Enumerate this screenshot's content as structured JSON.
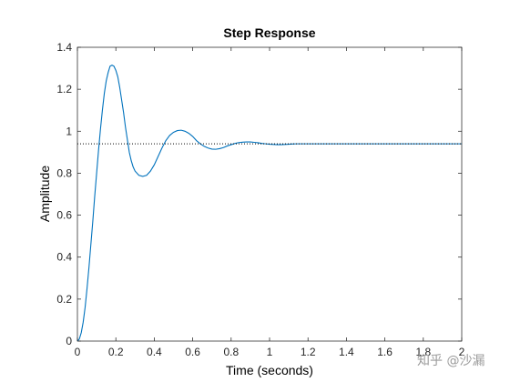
{
  "chart_data": {
    "type": "line",
    "title": "Step Response",
    "xlabel": "Time (seconds)",
    "ylabel": "Amplitude",
    "xlim": [
      0,
      2
    ],
    "ylim": [
      0,
      1.4
    ],
    "x_ticks": [
      "0",
      "0.2",
      "0.4",
      "0.6",
      "0.8",
      "1",
      "1.2",
      "1.4",
      "1.6",
      "1.8",
      "2"
    ],
    "y_ticks": [
      "0",
      "0.2",
      "0.4",
      "0.6",
      "0.8",
      "1",
      "1.2",
      "1.4"
    ],
    "grid": false,
    "box": true,
    "series": [
      {
        "style": "solid",
        "color": "#0072BD",
        "points": [
          [
            0,
            0
          ],
          [
            0.01,
            0.01
          ],
          [
            0.02,
            0.04
          ],
          [
            0.03,
            0.09
          ],
          [
            0.04,
            0.16
          ],
          [
            0.05,
            0.25
          ],
          [
            0.06,
            0.35
          ],
          [
            0.07,
            0.46
          ],
          [
            0.08,
            0.57
          ],
          [
            0.09,
            0.69
          ],
          [
            0.1,
            0.8
          ],
          [
            0.11,
            0.91
          ],
          [
            0.12,
            1.01
          ],
          [
            0.13,
            1.1
          ],
          [
            0.14,
            1.18
          ],
          [
            0.15,
            1.24
          ],
          [
            0.16,
            1.28
          ],
          [
            0.17,
            1.31
          ],
          [
            0.18,
            1.315
          ],
          [
            0.19,
            1.31
          ],
          [
            0.2,
            1.29
          ],
          [
            0.21,
            1.26
          ],
          [
            0.22,
            1.21
          ],
          [
            0.23,
            1.15
          ],
          [
            0.24,
            1.09
          ],
          [
            0.25,
            1.02
          ],
          [
            0.26,
            0.96
          ],
          [
            0.27,
            0.9
          ],
          [
            0.28,
            0.86
          ],
          [
            0.29,
            0.83
          ],
          [
            0.3,
            0.81
          ],
          [
            0.32,
            0.79
          ],
          [
            0.34,
            0.785
          ],
          [
            0.36,
            0.79
          ],
          [
            0.38,
            0.81
          ],
          [
            0.4,
            0.84
          ],
          [
            0.42,
            0.88
          ],
          [
            0.44,
            0.92
          ],
          [
            0.46,
            0.955
          ],
          [
            0.48,
            0.98
          ],
          [
            0.5,
            0.995
          ],
          [
            0.52,
            1.003
          ],
          [
            0.54,
            1.005
          ],
          [
            0.56,
            1.0
          ],
          [
            0.58,
            0.99
          ],
          [
            0.6,
            0.975
          ],
          [
            0.62,
            0.955
          ],
          [
            0.64,
            0.94
          ],
          [
            0.66,
            0.928
          ],
          [
            0.68,
            0.92
          ],
          [
            0.7,
            0.915
          ],
          [
            0.72,
            0.914
          ],
          [
            0.74,
            0.917
          ],
          [
            0.76,
            0.922
          ],
          [
            0.78,
            0.93
          ],
          [
            0.8,
            0.936
          ],
          [
            0.82,
            0.942
          ],
          [
            0.84,
            0.946
          ],
          [
            0.86,
            0.948
          ],
          [
            0.88,
            0.949
          ],
          [
            0.9,
            0.949
          ],
          [
            0.92,
            0.947
          ],
          [
            0.94,
            0.945
          ],
          [
            0.96,
            0.942
          ],
          [
            0.98,
            0.94
          ],
          [
            1.0,
            0.938
          ],
          [
            1.02,
            0.937
          ],
          [
            1.04,
            0.936
          ],
          [
            1.06,
            0.936
          ],
          [
            1.08,
            0.937
          ],
          [
            1.1,
            0.938
          ],
          [
            1.12,
            0.939
          ],
          [
            1.14,
            0.94
          ],
          [
            1.16,
            0.94
          ],
          [
            1.18,
            0.94
          ],
          [
            1.2,
            0.94
          ],
          [
            1.25,
            0.94
          ],
          [
            1.3,
            0.94
          ],
          [
            1.4,
            0.94
          ],
          [
            1.5,
            0.94
          ],
          [
            1.6,
            0.94
          ],
          [
            1.7,
            0.94
          ],
          [
            1.8,
            0.94
          ],
          [
            1.9,
            0.94
          ],
          [
            2.0,
            0.94
          ]
        ]
      },
      {
        "style": "dotted",
        "color": "#000000",
        "points": [
          [
            0,
            0.94
          ],
          [
            2,
            0.94
          ]
        ]
      }
    ]
  },
  "watermark": {
    "text": "知乎 @沙漏"
  }
}
